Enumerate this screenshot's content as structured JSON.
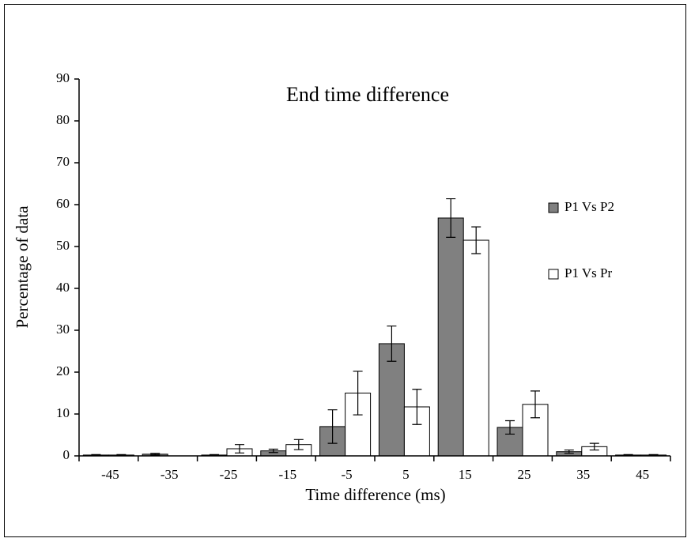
{
  "chart_data": {
    "type": "bar",
    "title": "End time difference",
    "x_label": "Time difference (ms)",
    "y_label": "Percentage of data",
    "categories": [
      "-45",
      "-35",
      "-25",
      "-15",
      "-5",
      "5",
      "15",
      "25",
      "35",
      "45"
    ],
    "series": [
      {
        "name": "P1 Vs P2",
        "color": "#808080",
        "values": [
          0.2,
          0.4,
          0.2,
          1.2,
          7,
          26.8,
          56.8,
          6.8,
          1,
          0.2
        ],
        "errors": [
          0.1,
          0.2,
          0.1,
          0.4,
          4,
          4.2,
          4.6,
          1.6,
          0.4,
          0.1
        ]
      },
      {
        "name": "P1 Vs Pr",
        "color": "#ffffff",
        "values": [
          0.2,
          0,
          1.7,
          2.7,
          15,
          11.7,
          51.5,
          12.3,
          2.2,
          0.2
        ],
        "errors": [
          0.1,
          0,
          1,
          1.2,
          5.2,
          4.2,
          3.2,
          3.2,
          0.8,
          0.1
        ]
      }
    ],
    "ylim": [
      0,
      90
    ],
    "yticks": [
      0,
      10,
      20,
      30,
      40,
      50,
      60,
      70,
      80,
      90
    ],
    "legend": "right"
  }
}
